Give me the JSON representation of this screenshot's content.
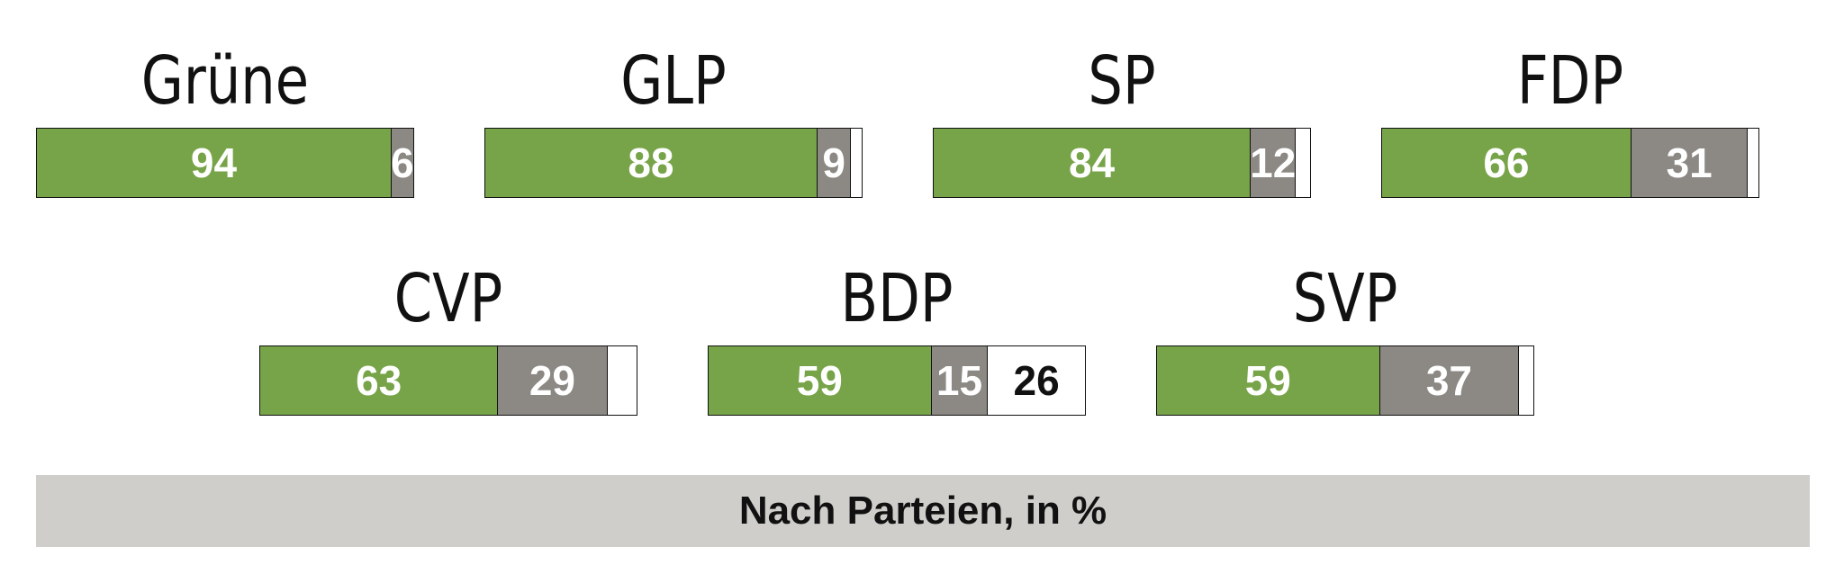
{
  "chart_data": {
    "type": "bar",
    "orientation": "horizontal-stacked",
    "categories": [
      "Grüne",
      "GLP",
      "SP",
      "FDP",
      "CVP",
      "BDP",
      "SVP"
    ],
    "series": [
      {
        "values": [
          94,
          88,
          84,
          66,
          63,
          59,
          59
        ]
      },
      {
        "values": [
          6,
          9,
          12,
          31,
          29,
          15,
          37
        ]
      },
      {
        "values": [
          0,
          3,
          4,
          3,
          8,
          26,
          4
        ]
      }
    ],
    "colors": [
      "#77a448",
      "#8c8884",
      "#ffffff"
    ],
    "label_colors": [
      "#ffffff",
      "#ffffff",
      "#111111"
    ],
    "visible_labels": [
      [
        "94",
        "6",
        ""
      ],
      [
        "88",
        "9",
        ""
      ],
      [
        "84",
        "12",
        ""
      ],
      [
        "66",
        "31",
        ""
      ],
      [
        "63",
        "29",
        ""
      ],
      [
        "59",
        "15",
        "26"
      ],
      [
        "59",
        "37",
        ""
      ]
    ],
    "xlim": [
      0,
      100
    ],
    "grid": false,
    "legend": "none",
    "footer": "Nach Parteien, in %"
  }
}
